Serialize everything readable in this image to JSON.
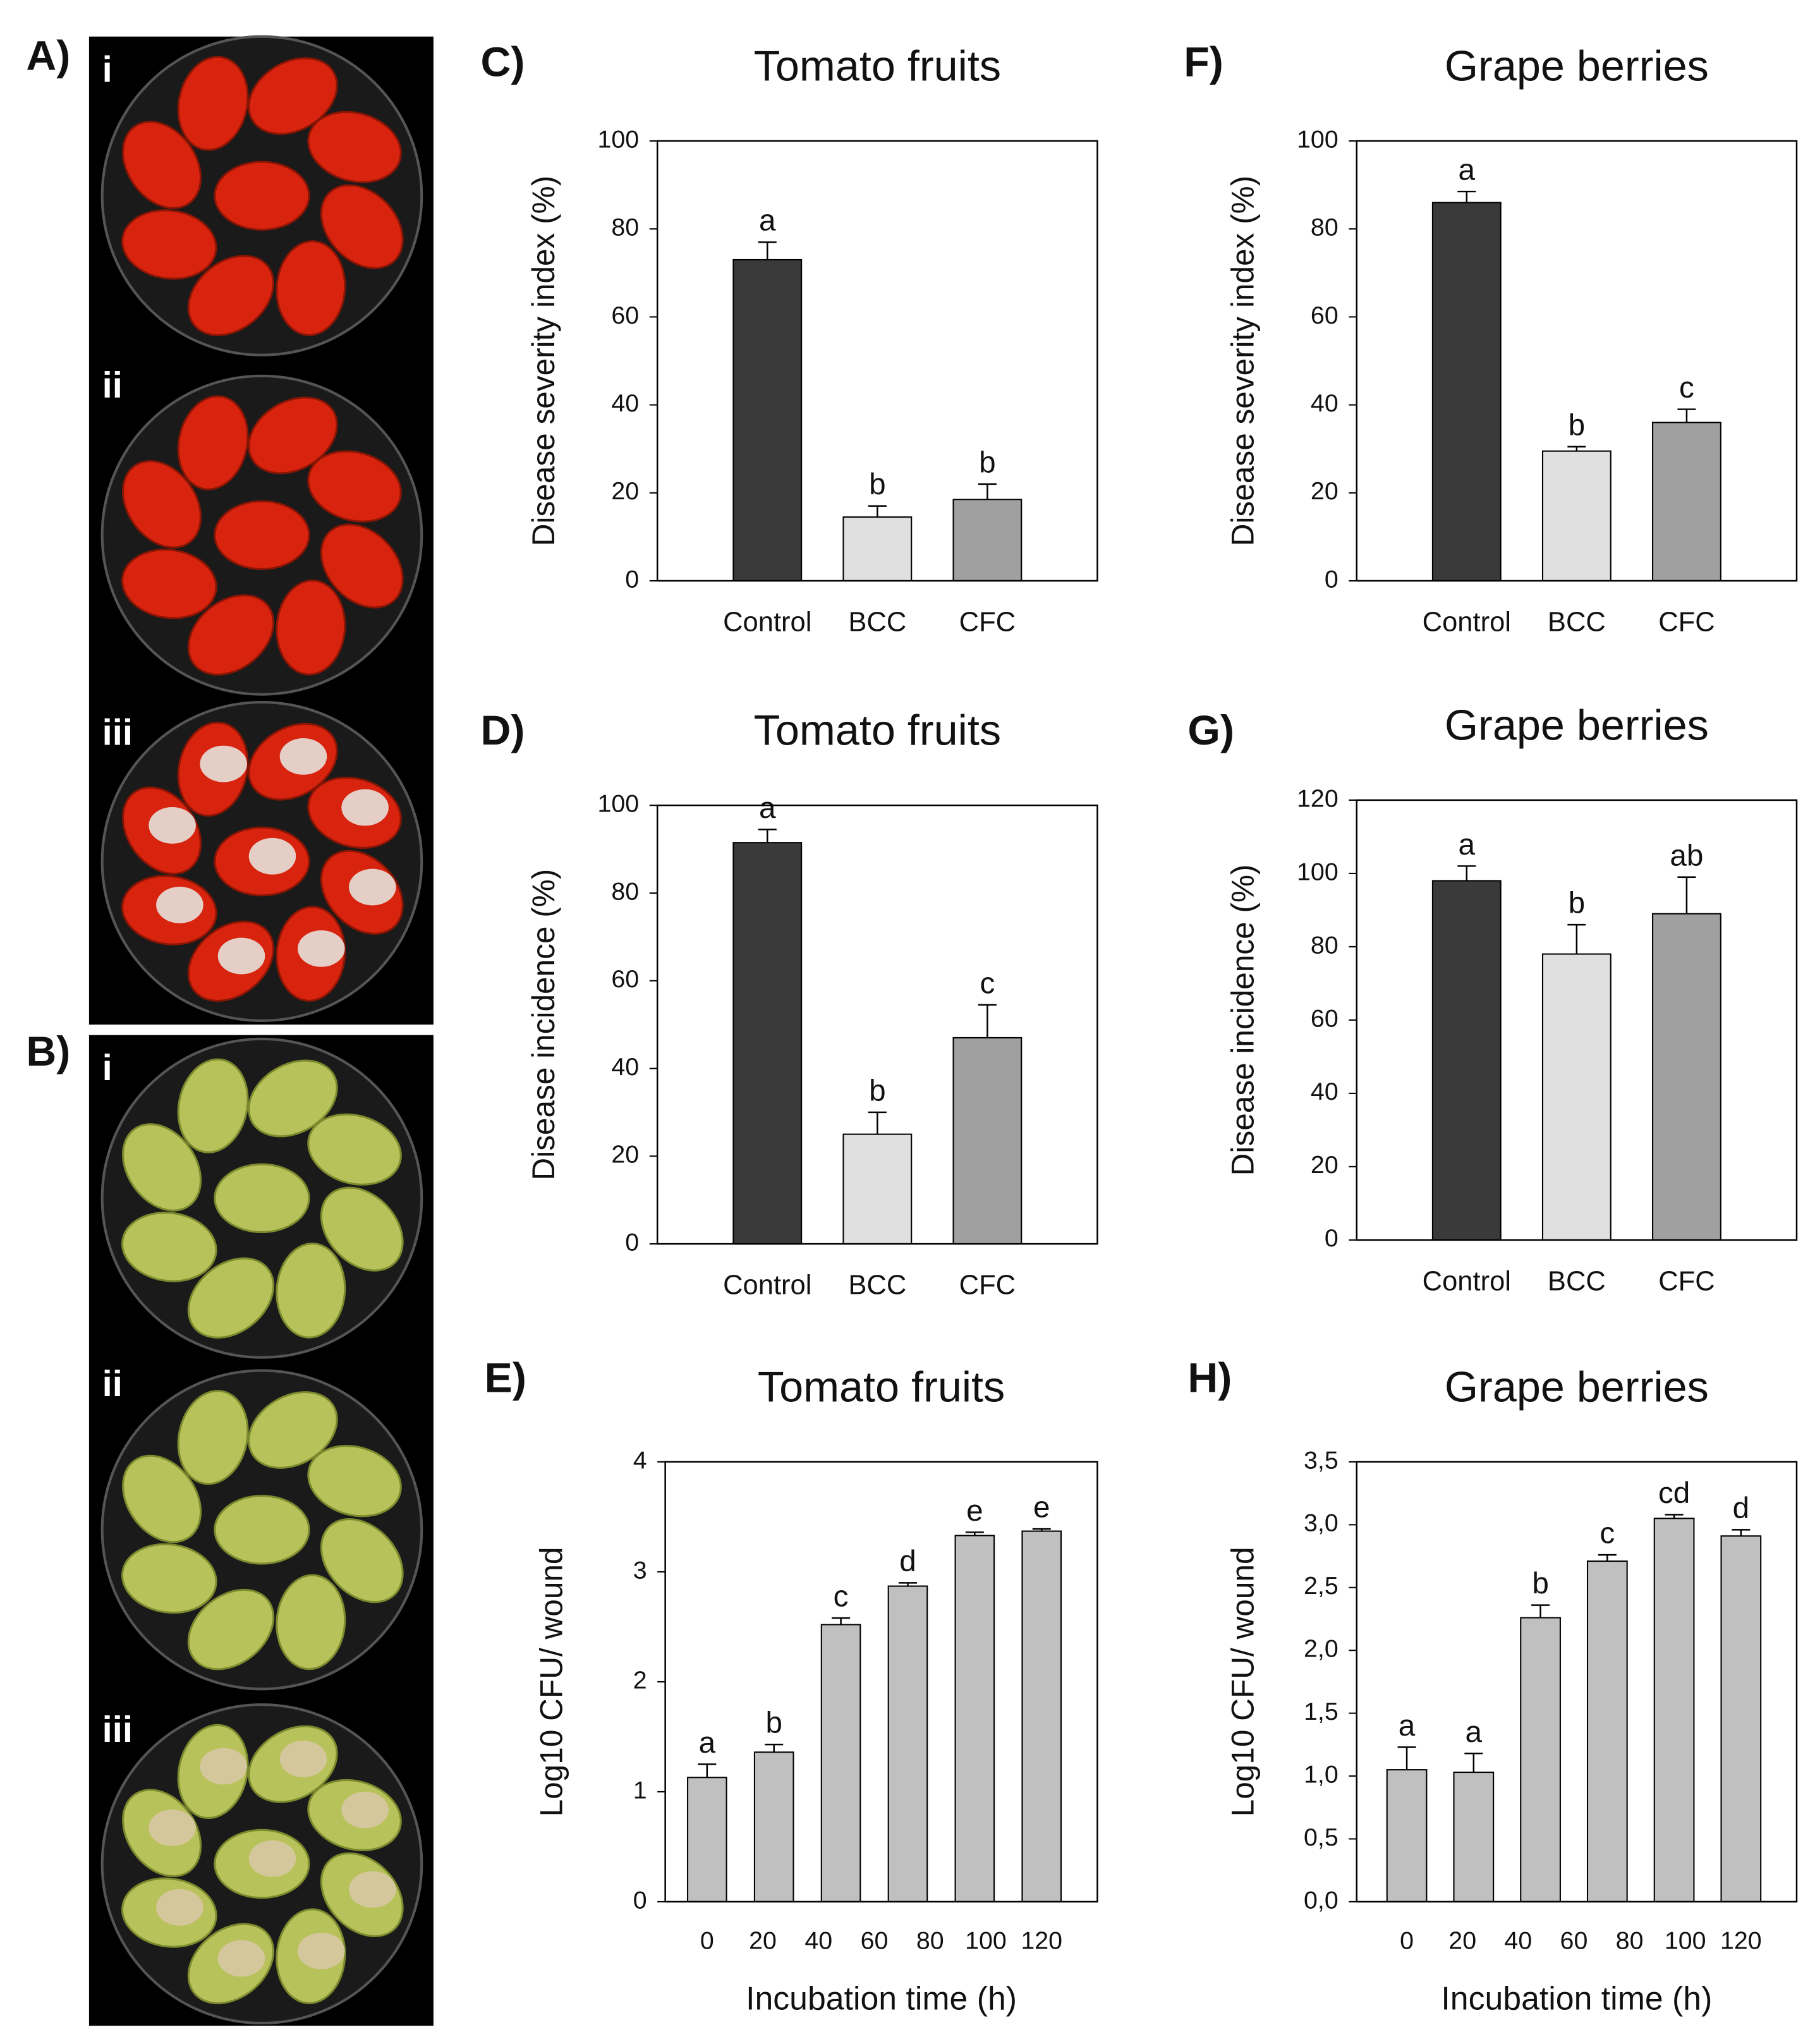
{
  "photos": [
    {
      "label": "A)",
      "rows": [
        "i",
        "ii",
        "iii"
      ]
    },
    {
      "label": "B)",
      "rows": [
        "i",
        "ii",
        "iii"
      ]
    }
  ],
  "chart_data": [
    {
      "type": "bar",
      "panel": "C)",
      "title": "Tomato fruits",
      "ylabel": "Disease severity index (%)",
      "categories": [
        "Control",
        "BCC",
        "CFC"
      ],
      "values": [
        73,
        14.5,
        18.5
      ],
      "errors": [
        4,
        2.5,
        3.5
      ],
      "annotations": [
        "a",
        "b",
        "b"
      ],
      "colors": [
        "#3a3a3a",
        "#e0e0e0",
        "#a0a0a0"
      ],
      "ylim": [
        0,
        100
      ],
      "yticks": [
        0,
        20,
        40,
        60,
        80,
        100
      ]
    },
    {
      "type": "bar",
      "panel": "D)",
      "title": "Tomato fruits",
      "ylabel": "Disease incidence (%)",
      "categories": [
        "Control",
        "BCC",
        "CFC"
      ],
      "values": [
        91.5,
        25,
        47
      ],
      "errors": [
        3,
        5,
        7.5
      ],
      "annotations": [
        "a",
        "b",
        "c"
      ],
      "colors": [
        "#3a3a3a",
        "#e0e0e0",
        "#a0a0a0"
      ],
      "ylim": [
        0,
        100
      ],
      "yticks": [
        0,
        20,
        40,
        60,
        80,
        100
      ]
    },
    {
      "type": "bar",
      "panel": "E)",
      "title": "Tomato fruits",
      "ylabel": "Log10 CFU/ wound",
      "xlabel": "Incubation time (h)",
      "x": [
        0,
        24,
        48,
        72,
        96,
        120
      ],
      "values": [
        1.13,
        1.36,
        2.52,
        2.87,
        3.33,
        3.37
      ],
      "errors": [
        0.12,
        0.07,
        0.06,
        0.03,
        0.03,
        0.02
      ],
      "annotations": [
        "a",
        "b",
        "c",
        "d",
        "e",
        "e"
      ],
      "color": "#c0c0c0",
      "xlim": [
        -15,
        140
      ],
      "xticks": [
        0,
        20,
        40,
        60,
        80,
        100,
        120
      ],
      "ylim": [
        0,
        4
      ],
      "yticks": [
        0,
        1,
        2,
        3,
        4
      ]
    },
    {
      "type": "bar",
      "panel": "F)",
      "title": "Grape berries",
      "ylabel": "Disease severity index (%)",
      "categories": [
        "Control",
        "BCC",
        "CFC"
      ],
      "values": [
        86,
        29.5,
        36
      ],
      "errors": [
        2.5,
        1,
        3
      ],
      "annotations": [
        "a",
        "b",
        "c"
      ],
      "colors": [
        "#3a3a3a",
        "#e0e0e0",
        "#a0a0a0"
      ],
      "ylim": [
        0,
        100
      ],
      "yticks": [
        0,
        20,
        40,
        60,
        80,
        100
      ]
    },
    {
      "type": "bar",
      "panel": "G)",
      "title": "Grape berries",
      "ylabel": "Disease incidence (%)",
      "categories": [
        "Control",
        "BCC",
        "CFC"
      ],
      "values": [
        98,
        78,
        89
      ],
      "errors": [
        4,
        8,
        10
      ],
      "annotations": [
        "a",
        "b",
        "ab"
      ],
      "colors": [
        "#3a3a3a",
        "#e0e0e0",
        "#a0a0a0"
      ],
      "ylim": [
        0,
        120
      ],
      "yticks": [
        0,
        20,
        40,
        60,
        80,
        100,
        120
      ]
    },
    {
      "type": "bar",
      "panel": "H)",
      "title": "Grape berries",
      "ylabel": "Log10 CFU/ wound",
      "xlabel": "Incubation time (h)",
      "x": [
        0,
        24,
        48,
        72,
        96,
        120
      ],
      "values": [
        1.05,
        1.03,
        2.26,
        2.71,
        3.05,
        2.91
      ],
      "errors": [
        0.18,
        0.15,
        0.1,
        0.05,
        0.03,
        0.05
      ],
      "annotations": [
        "a",
        "a",
        "b",
        "c",
        "cd",
        "d"
      ],
      "color": "#c0c0c0",
      "xlim": [
        -18,
        140
      ],
      "xticks": [
        0,
        20,
        40,
        60,
        80,
        100,
        120
      ],
      "ylim": [
        0,
        3.5
      ],
      "yticks": [
        {
          "value": 0,
          "label": "0,0"
        },
        {
          "value": 0.5,
          "label": "0,5"
        },
        {
          "value": 1,
          "label": "1,0"
        },
        {
          "value": 1.5,
          "label": "1,5"
        },
        {
          "value": 2,
          "label": "2,0"
        },
        {
          "value": 2.5,
          "label": "2,5"
        },
        {
          "value": 3,
          "label": "3,0"
        },
        {
          "value": 3.5,
          "label": "3,5"
        }
      ]
    }
  ]
}
